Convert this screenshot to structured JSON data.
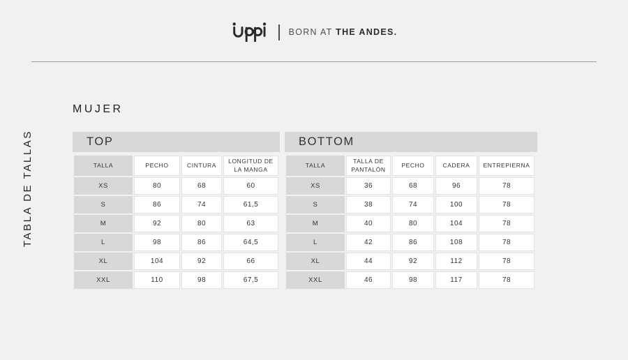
{
  "brand": {
    "name": "Lippi",
    "tagline_regular": "BORN AT",
    "tagline_bold": "THE ANDES."
  },
  "side_label": "TABLA DE TALLAS",
  "section_title": "MUJER",
  "tables": {
    "top": {
      "title": "TOP",
      "columns": [
        "TALLA",
        "PECHO",
        "CINTURA",
        "LONGITUD DE LA MANGA"
      ],
      "rows": [
        [
          "XS",
          "80",
          "68",
          "60"
        ],
        [
          "S",
          "86",
          "74",
          "61,5"
        ],
        [
          "M",
          "92",
          "80",
          "63"
        ],
        [
          "L",
          "98",
          "86",
          "64,5"
        ],
        [
          "XL",
          "104",
          "92",
          "66"
        ],
        [
          "XXL",
          "110",
          "98",
          "67,5"
        ]
      ]
    },
    "bottom": {
      "title": "BOTTOM",
      "columns": [
        "TALLA",
        "TALLA DE PANTALÓN",
        "PECHO",
        "CADERA",
        "ENTREPIERNA"
      ],
      "rows": [
        [
          "XS",
          "36",
          "68",
          "96",
          "78"
        ],
        [
          "S",
          "38",
          "74",
          "100",
          "78"
        ],
        [
          "M",
          "40",
          "80",
          "104",
          "78"
        ],
        [
          "L",
          "42",
          "86",
          "108",
          "78"
        ],
        [
          "XL",
          "44",
          "92",
          "112",
          "78"
        ],
        [
          "XXL",
          "46",
          "98",
          "117",
          "78"
        ]
      ]
    }
  },
  "colors": {
    "page_bg": "#f2f1ef",
    "band_gray": "#d8d8d8",
    "cell_border": "#e3e2e0",
    "text_dark": "#2e2e2e",
    "rule_gray": "#9b9b9b"
  }
}
